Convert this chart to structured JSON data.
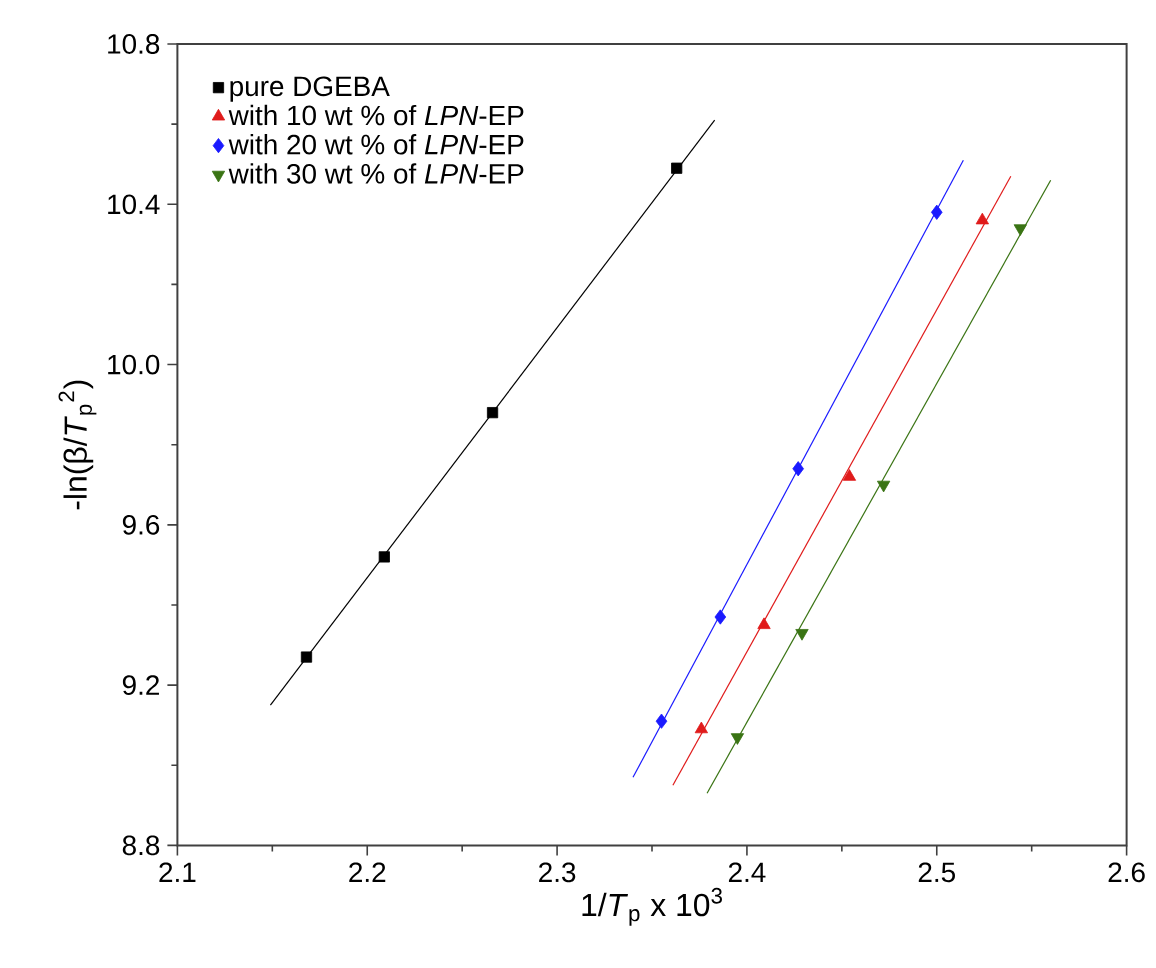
{
  "chart_data": {
    "type": "scatter",
    "xlabel": "1/*T*$_{p}$ x 10$^{3}$",
    "ylabel": "-ln(β/*T*$_{p}$$^{2}$)",
    "xlim": [
      2.1,
      2.6
    ],
    "xticks": [
      2.1,
      2.2,
      2.3,
      2.4,
      2.5,
      2.6
    ],
    "ylim": [
      8.8,
      10.8
    ],
    "yticks": [
      8.8,
      9.2,
      9.6,
      {
        "value": 10,
        "label": "10.0"
      },
      10.4,
      10.8
    ],
    "grid": false,
    "legend": "top left",
    "series": [
      {
        "name": "pure DGEBA",
        "marker": "square",
        "color": "#000000",
        "x": [
          2.168,
          2.209,
          2.266,
          2.363
        ],
        "values": [
          9.27,
          9.52,
          9.88,
          10.49
        ]
      },
      {
        "name": "with 10 wt % of *LPN*-EP",
        "marker": "triangle",
        "color": "#e01b1b",
        "x": [
          2.376,
          2.409,
          2.454,
          2.524
        ],
        "values": [
          9.09,
          9.35,
          9.72,
          10.36
        ]
      },
      {
        "name": "with 20 wt % of *LPN*-EP",
        "marker": "diamond",
        "color": "#1a1aff",
        "x": [
          2.355,
          2.386,
          2.427,
          2.5
        ],
        "values": [
          9.11,
          9.37,
          9.74,
          10.38
        ]
      },
      {
        "name": "with 30 wt % of *LPN*-EP",
        "marker": "triangle-down",
        "color": "#3a7414",
        "x": [
          2.395,
          2.429,
          2.472,
          2.544
        ],
        "values": [
          9.07,
          9.33,
          9.7,
          10.34
        ]
      },
      {
        "type": "line",
        "marker": "none",
        "color": "#000000",
        "x": [
          2.149,
          2.383
        ],
        "values": [
          9.15,
          10.61
        ]
      },
      {
        "type": "line",
        "marker": "none",
        "color": "#e01b1b",
        "x": [
          2.361,
          2.539
        ],
        "values": [
          8.95,
          10.47
        ]
      },
      {
        "type": "line",
        "marker": "none",
        "color": "#1a1aff",
        "x": [
          2.34,
          2.514
        ],
        "values": [
          8.97,
          10.51
        ]
      },
      {
        "type": "line",
        "marker": "none",
        "color": "#3a7414",
        "x": [
          2.379,
          2.56
        ],
        "values": [
          8.93,
          10.46
        ]
      }
    ]
  }
}
